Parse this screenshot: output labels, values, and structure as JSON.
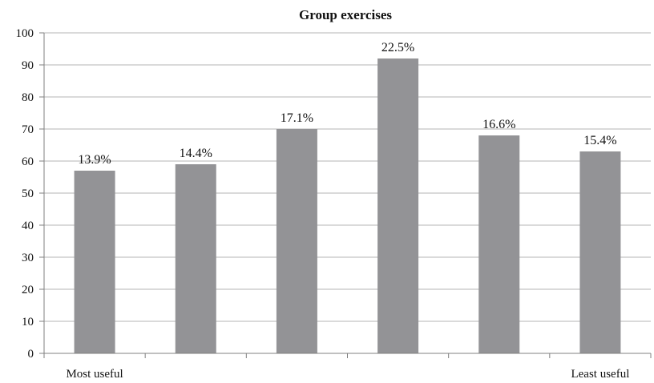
{
  "chart_data": {
    "type": "bar",
    "title": "Group exercises",
    "xlabel": "",
    "ylabel": "",
    "ylim": [
      0,
      100
    ],
    "yticks": [
      0,
      10,
      20,
      30,
      40,
      50,
      60,
      70,
      80,
      90,
      100
    ],
    "grid": true,
    "legend": "none",
    "categories": [
      "Most useful",
      "",
      "",
      "",
      "",
      "Least useful"
    ],
    "values": [
      57,
      59,
      70,
      92,
      68,
      63
    ],
    "data_labels": [
      "13.9%",
      "14.4%",
      "17.1%",
      "22.5%",
      "16.6%",
      "15.4%"
    ],
    "bar_color": "#939396",
    "grid_color": "#b5b5b5",
    "axis_color": "#808080"
  }
}
